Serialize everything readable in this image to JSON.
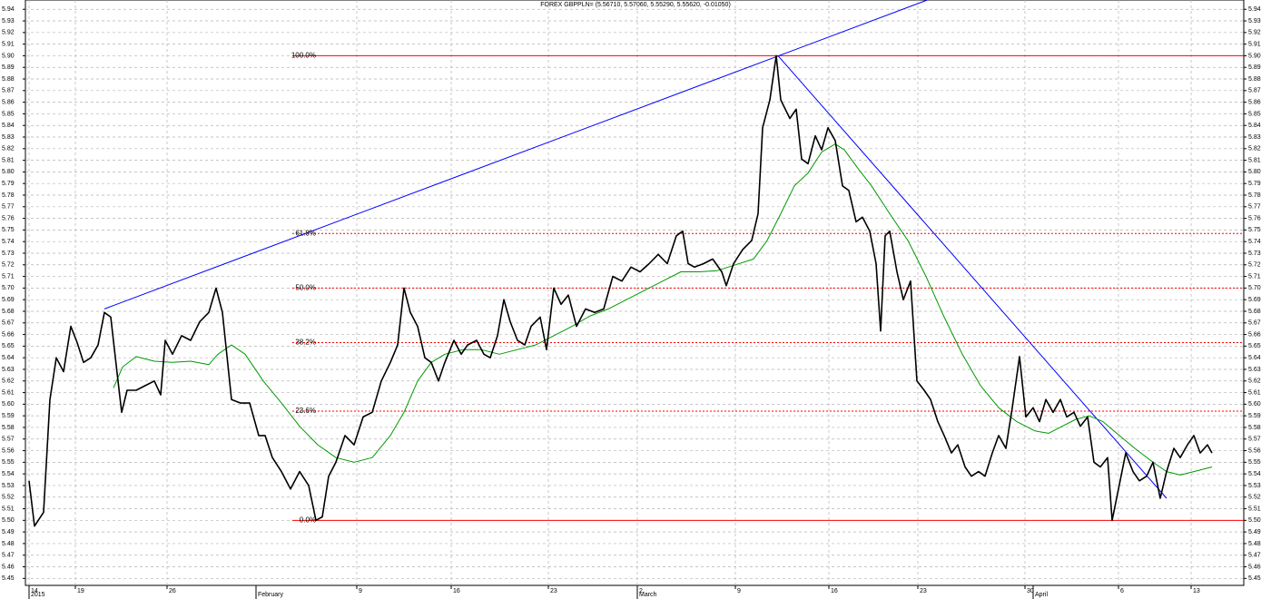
{
  "chart_data": {
    "type": "line",
    "title": "FOREX GBPPLN= (5.56710, 5.57060, 5.55290, 5.55620, -0.01050)",
    "xlim": [
      -0.2,
      66.9
    ],
    "xticks": [
      {
        "value": 0,
        "label": "14"
      },
      {
        "value": 2.55,
        "label": "19"
      },
      {
        "value": 7.6,
        "label": "26"
      },
      {
        "value": 18.05,
        "label": "9"
      },
      {
        "value": 23.25,
        "label": "16"
      },
      {
        "value": 28.6,
        "label": "23"
      },
      {
        "value": 33.5,
        "label": "2"
      },
      {
        "value": 38.9,
        "label": "9"
      },
      {
        "value": 44.05,
        "label": "16"
      },
      {
        "value": 48.95,
        "label": "23"
      },
      {
        "value": 54.85,
        "label": "30"
      },
      {
        "value": 60,
        "label": "6"
      },
      {
        "value": 64,
        "label": "13"
      }
    ],
    "month_labels": [
      {
        "value": 0,
        "label": "2015"
      },
      {
        "value": 12.5,
        "label": "February"
      },
      {
        "value": 33.5,
        "label": "March"
      },
      {
        "value": 55.3,
        "label": "April"
      }
    ],
    "ylim": [
      5.444,
      5.948
    ],
    "yticks": [
      5.45,
      5.46,
      5.47,
      5.48,
      5.49,
      {
        "value": 5.5,
        "label": "5.50"
      },
      5.51,
      5.52,
      5.53,
      5.54,
      5.55,
      5.56,
      5.57,
      5.58,
      5.59,
      {
        "value": 5.6,
        "label": "5.60"
      },
      5.61,
      5.62,
      5.63,
      5.64,
      5.65,
      5.66,
      5.67,
      5.68,
      5.69,
      {
        "value": 5.7,
        "label": "5.70"
      },
      5.71,
      5.72,
      5.73,
      5.74,
      5.75,
      5.76,
      5.77,
      5.78,
      5.79,
      {
        "value": 5.8,
        "label": "5.80"
      },
      5.81,
      5.82,
      5.83,
      5.84,
      5.85,
      5.86,
      5.87,
      5.88,
      5.89,
      {
        "value": 5.9,
        "label": "5.90"
      },
      5.91,
      5.92,
      5.93,
      5.94
    ],
    "grid": true,
    "series": [
      {
        "color": "#000000",
        "x": [
          0,
          0.3,
          0.8,
          1.15,
          1.5,
          1.9,
          2.3,
          2.65,
          3,
          3.4,
          3.8,
          4.15,
          4.5,
          4.9,
          5.1,
          5.4,
          5.9,
          6.4,
          6.9,
          7.25,
          7.5,
          7.9,
          8.4,
          8.9,
          9.4,
          9.9,
          10.3,
          10.65,
          11.15,
          11.65,
          12.15,
          12.65,
          13,
          13.4,
          13.9,
          14.4,
          14.9,
          15.4,
          15.8,
          16.15,
          16.5,
          16.9,
          17.4,
          17.9,
          18.4,
          18.9,
          19.4,
          19.9,
          20.3,
          20.65,
          21,
          21.4,
          21.8,
          22.15,
          22.55,
          22.9,
          23.4,
          23.8,
          24.15,
          24.65,
          25.05,
          25.4,
          25.8,
          26.15,
          26.5,
          26.9,
          27.3,
          27.65,
          28.15,
          28.5,
          28.9,
          29.3,
          29.7,
          30.15,
          30.65,
          31.15,
          31.65,
          32.15,
          32.65,
          33.15,
          33.65,
          34.15,
          34.65,
          35.15,
          35.65,
          36,
          36.3,
          36.65,
          37.15,
          37.65,
          38.15,
          38.4,
          38.8,
          39.3,
          39.8,
          40.15,
          40.4,
          40.8,
          41.15,
          41.4,
          41.9,
          42.25,
          42.55,
          42.9,
          43.3,
          43.65,
          44,
          44.4,
          44.8,
          45.15,
          45.55,
          45.9,
          46.3,
          46.65,
          46.9,
          47.15,
          47.4,
          47.8,
          48.15,
          48.55,
          48.9,
          49.3,
          49.65,
          50.05,
          50.4,
          50.8,
          51.15,
          51.55,
          51.9,
          52.3,
          52.65,
          53.05,
          53.4,
          53.8,
          54.15,
          54.55,
          54.9,
          55.3,
          55.65,
          56,
          56.4,
          56.8,
          57.15,
          57.55,
          57.9,
          58.3,
          58.65,
          59,
          59.4,
          59.65,
          60,
          60.4,
          60.8,
          61.15,
          61.55,
          61.9,
          62.3,
          62.65,
          63.05,
          63.4,
          63.8,
          64.15,
          64.5,
          64.9,
          65.15
        ],
        "values": [
          5.534,
          5.495,
          5.507,
          5.604,
          5.64,
          5.628,
          5.667,
          5.653,
          5.636,
          5.64,
          5.651,
          5.679,
          5.675,
          5.62,
          5.593,
          5.612,
          5.612,
          5.616,
          5.62,
          5.608,
          5.655,
          5.643,
          5.659,
          5.655,
          5.671,
          5.679,
          5.7,
          5.679,
          5.604,
          5.601,
          5.601,
          5.573,
          5.573,
          5.554,
          5.542,
          5.527,
          5.542,
          5.53,
          5.5,
          5.503,
          5.538,
          5.55,
          5.573,
          5.565,
          5.589,
          5.593,
          5.62,
          5.636,
          5.651,
          5.7,
          5.679,
          5.667,
          5.64,
          5.636,
          5.62,
          5.636,
          5.655,
          5.643,
          5.651,
          5.655,
          5.643,
          5.64,
          5.659,
          5.69,
          5.671,
          5.655,
          5.651,
          5.667,
          5.675,
          5.647,
          5.7,
          5.686,
          5.694,
          5.667,
          5.682,
          5.679,
          5.682,
          5.71,
          5.706,
          5.718,
          5.714,
          5.721,
          5.729,
          5.721,
          5.745,
          5.749,
          5.721,
          5.718,
          5.721,
          5.725,
          5.714,
          5.702,
          5.721,
          5.733,
          5.741,
          5.764,
          5.838,
          5.862,
          5.9,
          5.862,
          5.846,
          5.854,
          5.811,
          5.807,
          5.831,
          5.819,
          5.838,
          5.827,
          5.788,
          5.784,
          5.757,
          5.761,
          5.749,
          5.721,
          5.663,
          5.745,
          5.749,
          5.714,
          5.69,
          5.706,
          5.62,
          5.612,
          5.604,
          5.585,
          5.573,
          5.558,
          5.565,
          5.546,
          5.538,
          5.542,
          5.538,
          5.558,
          5.573,
          5.562,
          5.597,
          5.641,
          5.589,
          5.597,
          5.585,
          5.604,
          5.593,
          5.604,
          5.589,
          5.593,
          5.581,
          5.589,
          5.55,
          5.546,
          5.554,
          5.5,
          5.527,
          5.558,
          5.542,
          5.534,
          5.538,
          5.55,
          5.519,
          5.542,
          5.562,
          5.554,
          5.565,
          5.573,
          5.558,
          5.565,
          5.558
        ]
      },
      {
        "color": "#009900",
        "x": [
          4.65,
          5.15,
          5.9,
          6.9,
          7.9,
          8.9,
          9.9,
          10.4,
          11.15,
          11.9,
          12.9,
          13.9,
          14.9,
          15.9,
          16.9,
          17.9,
          18.9,
          19.9,
          20.65,
          21.4,
          22.15,
          22.9,
          23.9,
          24.9,
          25.9,
          26.9,
          27.9,
          28.9,
          29.9,
          30.9,
          31.9,
          32.9,
          33.9,
          34.9,
          35.9,
          36.9,
          37.9,
          38.9,
          39.9,
          40.65,
          41.4,
          42.15,
          42.9,
          43.65,
          44.4,
          44.9,
          45.65,
          46.4,
          47.4,
          48.4,
          49.4,
          50.4,
          51.4,
          52.4,
          53.4,
          54.4,
          55.4,
          56.15,
          56.9,
          57.65,
          58.4,
          59.15,
          59.9,
          60.9,
          61.9,
          62.65,
          63.4,
          64.15,
          65.15
        ],
        "values": [
          5.614,
          5.632,
          5.641,
          5.637,
          5.636,
          5.637,
          5.634,
          5.643,
          5.651,
          5.643,
          5.62,
          5.601,
          5.581,
          5.565,
          5.554,
          5.55,
          5.554,
          5.573,
          5.593,
          5.62,
          5.636,
          5.643,
          5.647,
          5.647,
          5.643,
          5.647,
          5.651,
          5.659,
          5.667,
          5.676,
          5.682,
          5.69,
          5.698,
          5.706,
          5.714,
          5.714,
          5.715,
          5.72,
          5.725,
          5.741,
          5.764,
          5.788,
          5.799,
          5.817,
          5.824,
          5.819,
          5.803,
          5.788,
          5.764,
          5.741,
          5.71,
          5.675,
          5.643,
          5.616,
          5.597,
          5.585,
          5.577,
          5.575,
          5.581,
          5.587,
          5.59,
          5.585,
          5.575,
          5.562,
          5.55,
          5.542,
          5.539,
          5.542,
          5.546
        ]
      }
    ],
    "trendlines": [
      {
        "color": "#0000ff",
        "x": [
          4.15,
          49.65
        ],
        "values": [
          5.682,
          5.949
        ]
      },
      {
        "color": "#0000ff",
        "x": [
          41.25,
          62.65
        ],
        "values": [
          5.9,
          5.519
        ]
      }
    ],
    "fib_color": "#ff0000",
    "fib_levels": [
      {
        "value": 5.9,
        "label": "100.0%",
        "style": "solid"
      },
      {
        "value": 5.747,
        "label": "61.8%",
        "style": "dashed"
      },
      {
        "value": 5.7,
        "label": "50.0%",
        "style": "dashed"
      },
      {
        "value": 5.653,
        "label": "38.2%",
        "style": "dashed"
      },
      {
        "value": 5.594,
        "label": "23.6%",
        "style": "dashed"
      },
      {
        "value": 5.5,
        "label": "0.0%",
        "style": "solid"
      }
    ]
  }
}
